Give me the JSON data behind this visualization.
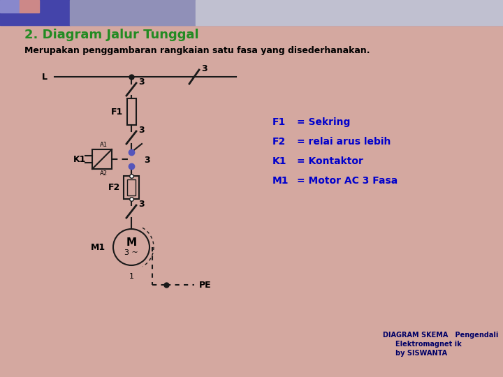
{
  "bg_color": "#d4a8a0",
  "title": "2. Diagram Jalur Tunggal",
  "title_color": "#228B22",
  "subtitle": "Merupakan penggambaran rangkaian satu fasa yang disederhanakan.",
  "subtitle_color": "#000000",
  "diagram_color": "#1a1a1a",
  "label_color": "#000000",
  "legend_color": "#0000cc",
  "bottom_text_color": "#000066",
  "legend_items": [
    [
      "F1",
      "= Sekring"
    ],
    [
      "F2",
      "= relai arus lebih"
    ],
    [
      "K1",
      "= Kontaktor"
    ],
    [
      "M1",
      "= Motor AC 3 Fasa"
    ]
  ],
  "bottom_text": [
    "DIAGRAM SKEMA   Pengendali",
    "Elektromagnet ik",
    "by SISWANTA"
  ]
}
